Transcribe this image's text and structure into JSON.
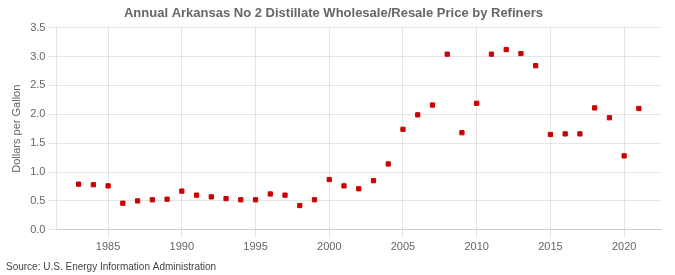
{
  "chart_data": {
    "type": "scatter",
    "title": "Annual Arkansas No 2 Distillate Wholesale/Resale Price by Refiners",
    "ylabel": "Dollars per Gallon",
    "annotation": "Source: U.S. Energy Information Administration",
    "x": [
      1983,
      1984,
      1985,
      1986,
      1987,
      1988,
      1989,
      1990,
      1991,
      1992,
      1993,
      1994,
      1995,
      1996,
      1997,
      1998,
      1999,
      2000,
      2001,
      2002,
      2003,
      2004,
      2005,
      2006,
      2007,
      2008,
      2009,
      2010,
      2011,
      2012,
      2013,
      2014,
      2015,
      2016,
      2017,
      2018,
      2019,
      2020,
      2021
    ],
    "values": [
      0.79,
      0.78,
      0.76,
      0.46,
      0.5,
      0.52,
      0.53,
      0.67,
      0.6,
      0.57,
      0.54,
      0.52,
      0.52,
      0.62,
      0.6,
      0.42,
      0.52,
      0.87,
      0.76,
      0.71,
      0.85,
      1.14,
      1.74,
      1.99,
      2.16,
      3.04,
      1.68,
      2.19,
      3.04,
      3.12,
      3.05,
      2.84,
      1.65,
      1.66,
      1.66,
      2.11,
      1.94,
      1.28,
      2.1
    ],
    "color": "#cc0000",
    "marker": "square",
    "xlim": [
      1981.5,
      2022.5
    ],
    "ylim": [
      0.0,
      3.5
    ],
    "xticks": [
      1985,
      1990,
      1995,
      2000,
      2005,
      2010,
      2015,
      2020
    ],
    "yticks": [
      {
        "value": 0,
        "label": "0.0"
      },
      0.5,
      {
        "value": 1,
        "label": "1.0"
      },
      1.5,
      {
        "value": 2,
        "label": "2.0"
      },
      2.5,
      {
        "value": 3,
        "label": "3.0"
      },
      3.5
    ],
    "grid": true
  }
}
